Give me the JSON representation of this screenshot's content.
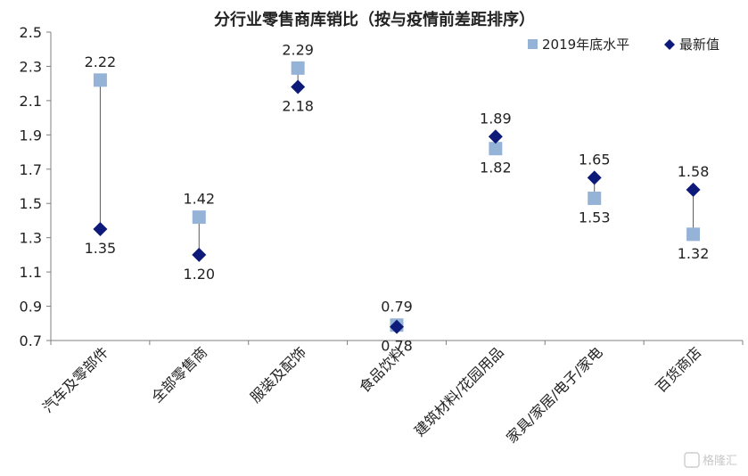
{
  "chart_data": {
    "type": "scatter",
    "title": "分行业零售商库销比（按与疫情前差距排序）",
    "categories": [
      "汽车及零部件",
      "全部零售商",
      "服装及配饰",
      "食品饮料",
      "建筑材料/花园用品",
      "家具/家居/电子/家电",
      "百货商店"
    ],
    "series": [
      {
        "name": "2019年底水平",
        "marker": "square",
        "color": "#95b3d7",
        "values": [
          2.22,
          1.42,
          2.29,
          0.79,
          1.82,
          1.53,
          1.32
        ]
      },
      {
        "name": "最新值",
        "marker": "diamond",
        "color": "#0d1a7a",
        "values": [
          1.35,
          1.2,
          2.18,
          0.78,
          1.89,
          1.65,
          1.58
        ]
      }
    ],
    "ylim": [
      0.7,
      2.5
    ],
    "yticks": [
      "0.7",
      "0.9",
      "1.1",
      "1.3",
      "1.5",
      "1.7",
      "1.9",
      "2.1",
      "2.3",
      "2.5"
    ],
    "legend_position": "top-right",
    "grid": false
  },
  "watermark": "格隆汇"
}
